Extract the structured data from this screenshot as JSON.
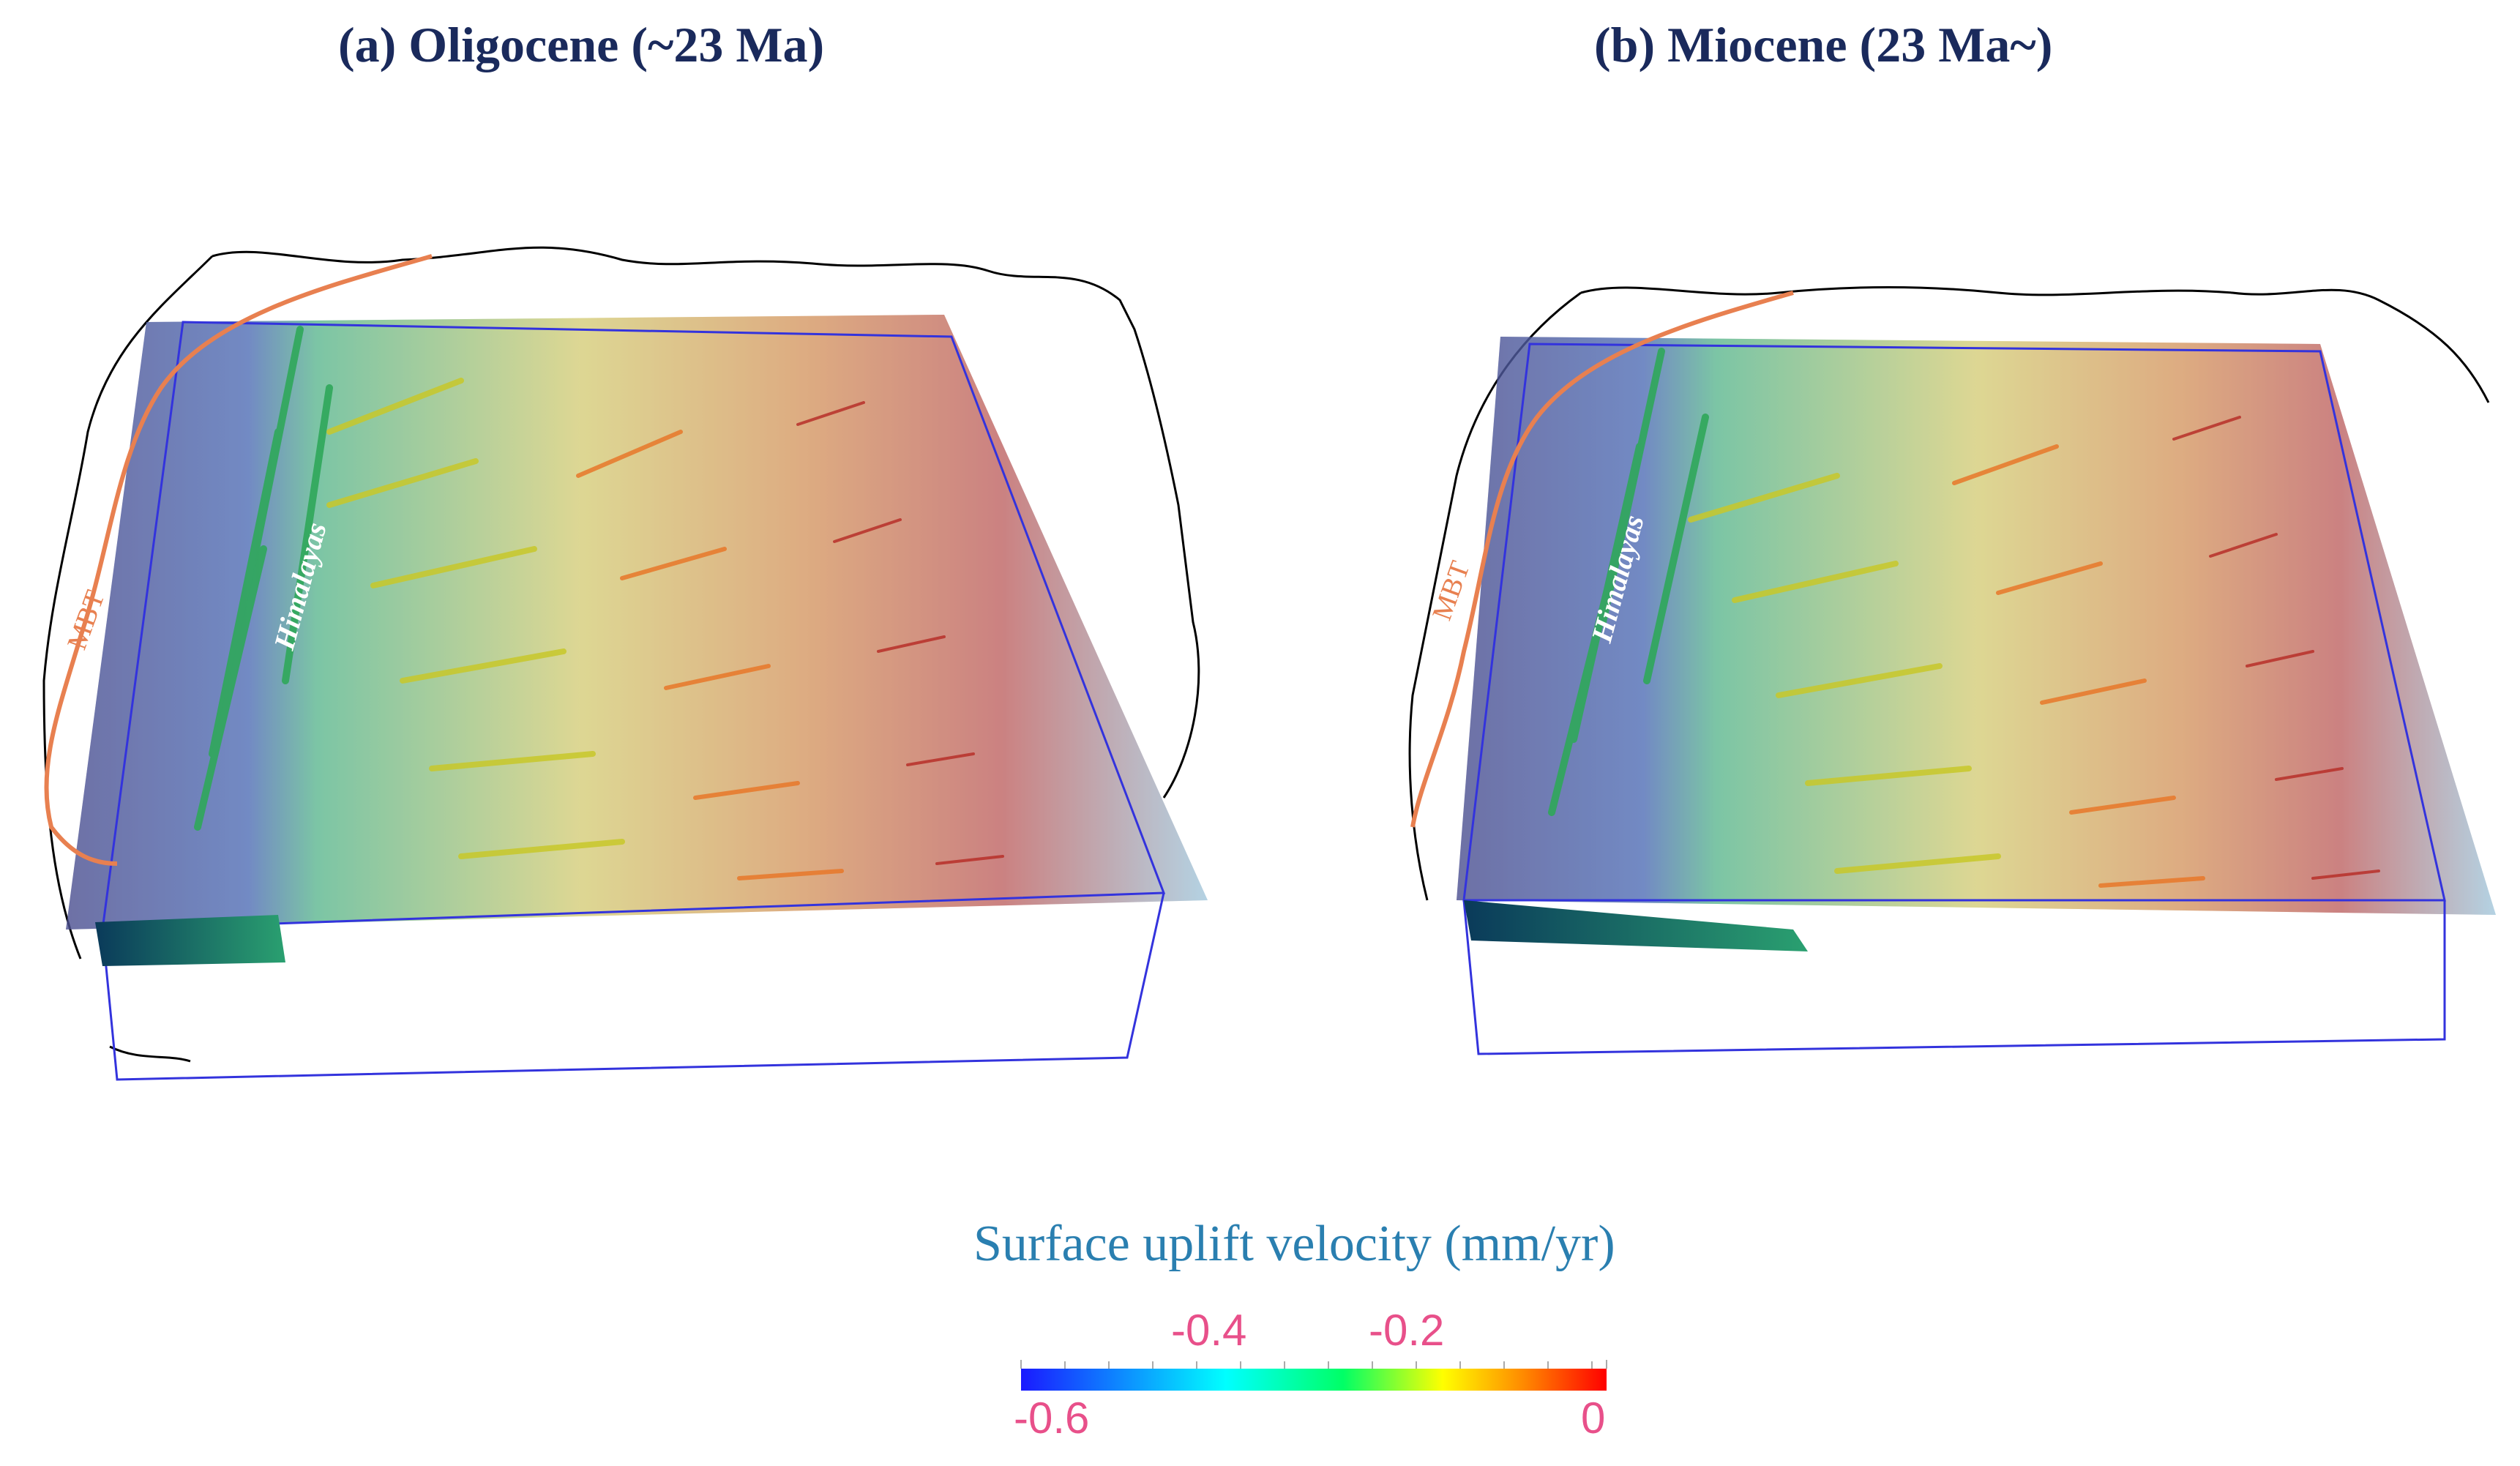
{
  "panels": [
    {
      "title": "(a) Oligocene (~23 Ma)",
      "region_label": "Himalayas",
      "fault_label": "MBT"
    },
    {
      "title": "(b) Miocene (23 Ma~)",
      "region_label": "Himalayas",
      "fault_label": "MBT"
    }
  ],
  "colorbar": {
    "title": "Surface uplift velocity (mm/yr)",
    "range": [
      -0.6,
      0
    ],
    "colors": [
      "#1a1aff",
      "#00ffff",
      "#00ff66",
      "#ffff00",
      "#ff8800",
      "#ff0000"
    ],
    "labels_top": [
      "-0.4",
      "-0.2"
    ],
    "label_min": "-0.6",
    "label_max": "0"
  }
}
